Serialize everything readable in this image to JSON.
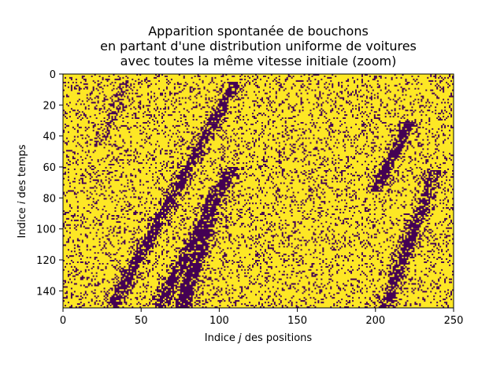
{
  "chart_data": {
    "type": "heatmap",
    "title_lines": [
      "Apparition spontanée de bouchons",
      "en partant d'une distribution uniforme de voitures",
      "avec toutes la même vitesse initiale (zoom)"
    ],
    "xlabel": {
      "before": "Indice ",
      "var": "j",
      "after": " des positions"
    },
    "ylabel": {
      "before": "Indice ",
      "var": "i",
      "after": " des temps"
    },
    "xlim": [
      0,
      250
    ],
    "ylim": [
      0,
      151
    ],
    "y_inverted": true,
    "x_ticks": [
      "0",
      "50",
      "100",
      "150",
      "200",
      "250"
    ],
    "x_tick_values": [
      0,
      50,
      100,
      150,
      200,
      250
    ],
    "y_ticks": [
      "0",
      "20",
      "40",
      "60",
      "80",
      "100",
      "120",
      "140"
    ],
    "y_tick_values": [
      0,
      20,
      40,
      60,
      80,
      100,
      120,
      140
    ],
    "grid_size": {
      "positions": 250,
      "times": 151
    },
    "colormap": {
      "empty": "#fde725",
      "car": "#440154"
    },
    "background_car_density": 0.17,
    "jams": [
      {
        "name": "band-1",
        "x_start": 110,
        "t_start": 5,
        "x_end": 30,
        "t_end": 151,
        "width": 3.5,
        "density": 0.82
      },
      {
        "name": "band-2",
        "x_start": 108,
        "t_start": 60,
        "x_end": 60,
        "t_end": 151,
        "width": 3.5,
        "density": 0.85
      },
      {
        "name": "band-3",
        "x_start": 96,
        "t_start": 78,
        "x_end": 76,
        "t_end": 151,
        "width": 4.5,
        "density": 0.85
      },
      {
        "name": "band-4",
        "x_start": 222,
        "t_start": 30,
        "x_end": 200,
        "t_end": 75,
        "width": 3.5,
        "density": 0.85
      },
      {
        "name": "band-5",
        "x_start": 238,
        "t_start": 62,
        "x_end": 205,
        "t_end": 151,
        "width": 3.5,
        "density": 0.8
      },
      {
        "name": "band-6",
        "x_start": 40,
        "t_start": 5,
        "x_end": 22,
        "t_end": 45,
        "width": 4,
        "density": 0.45
      }
    ]
  }
}
